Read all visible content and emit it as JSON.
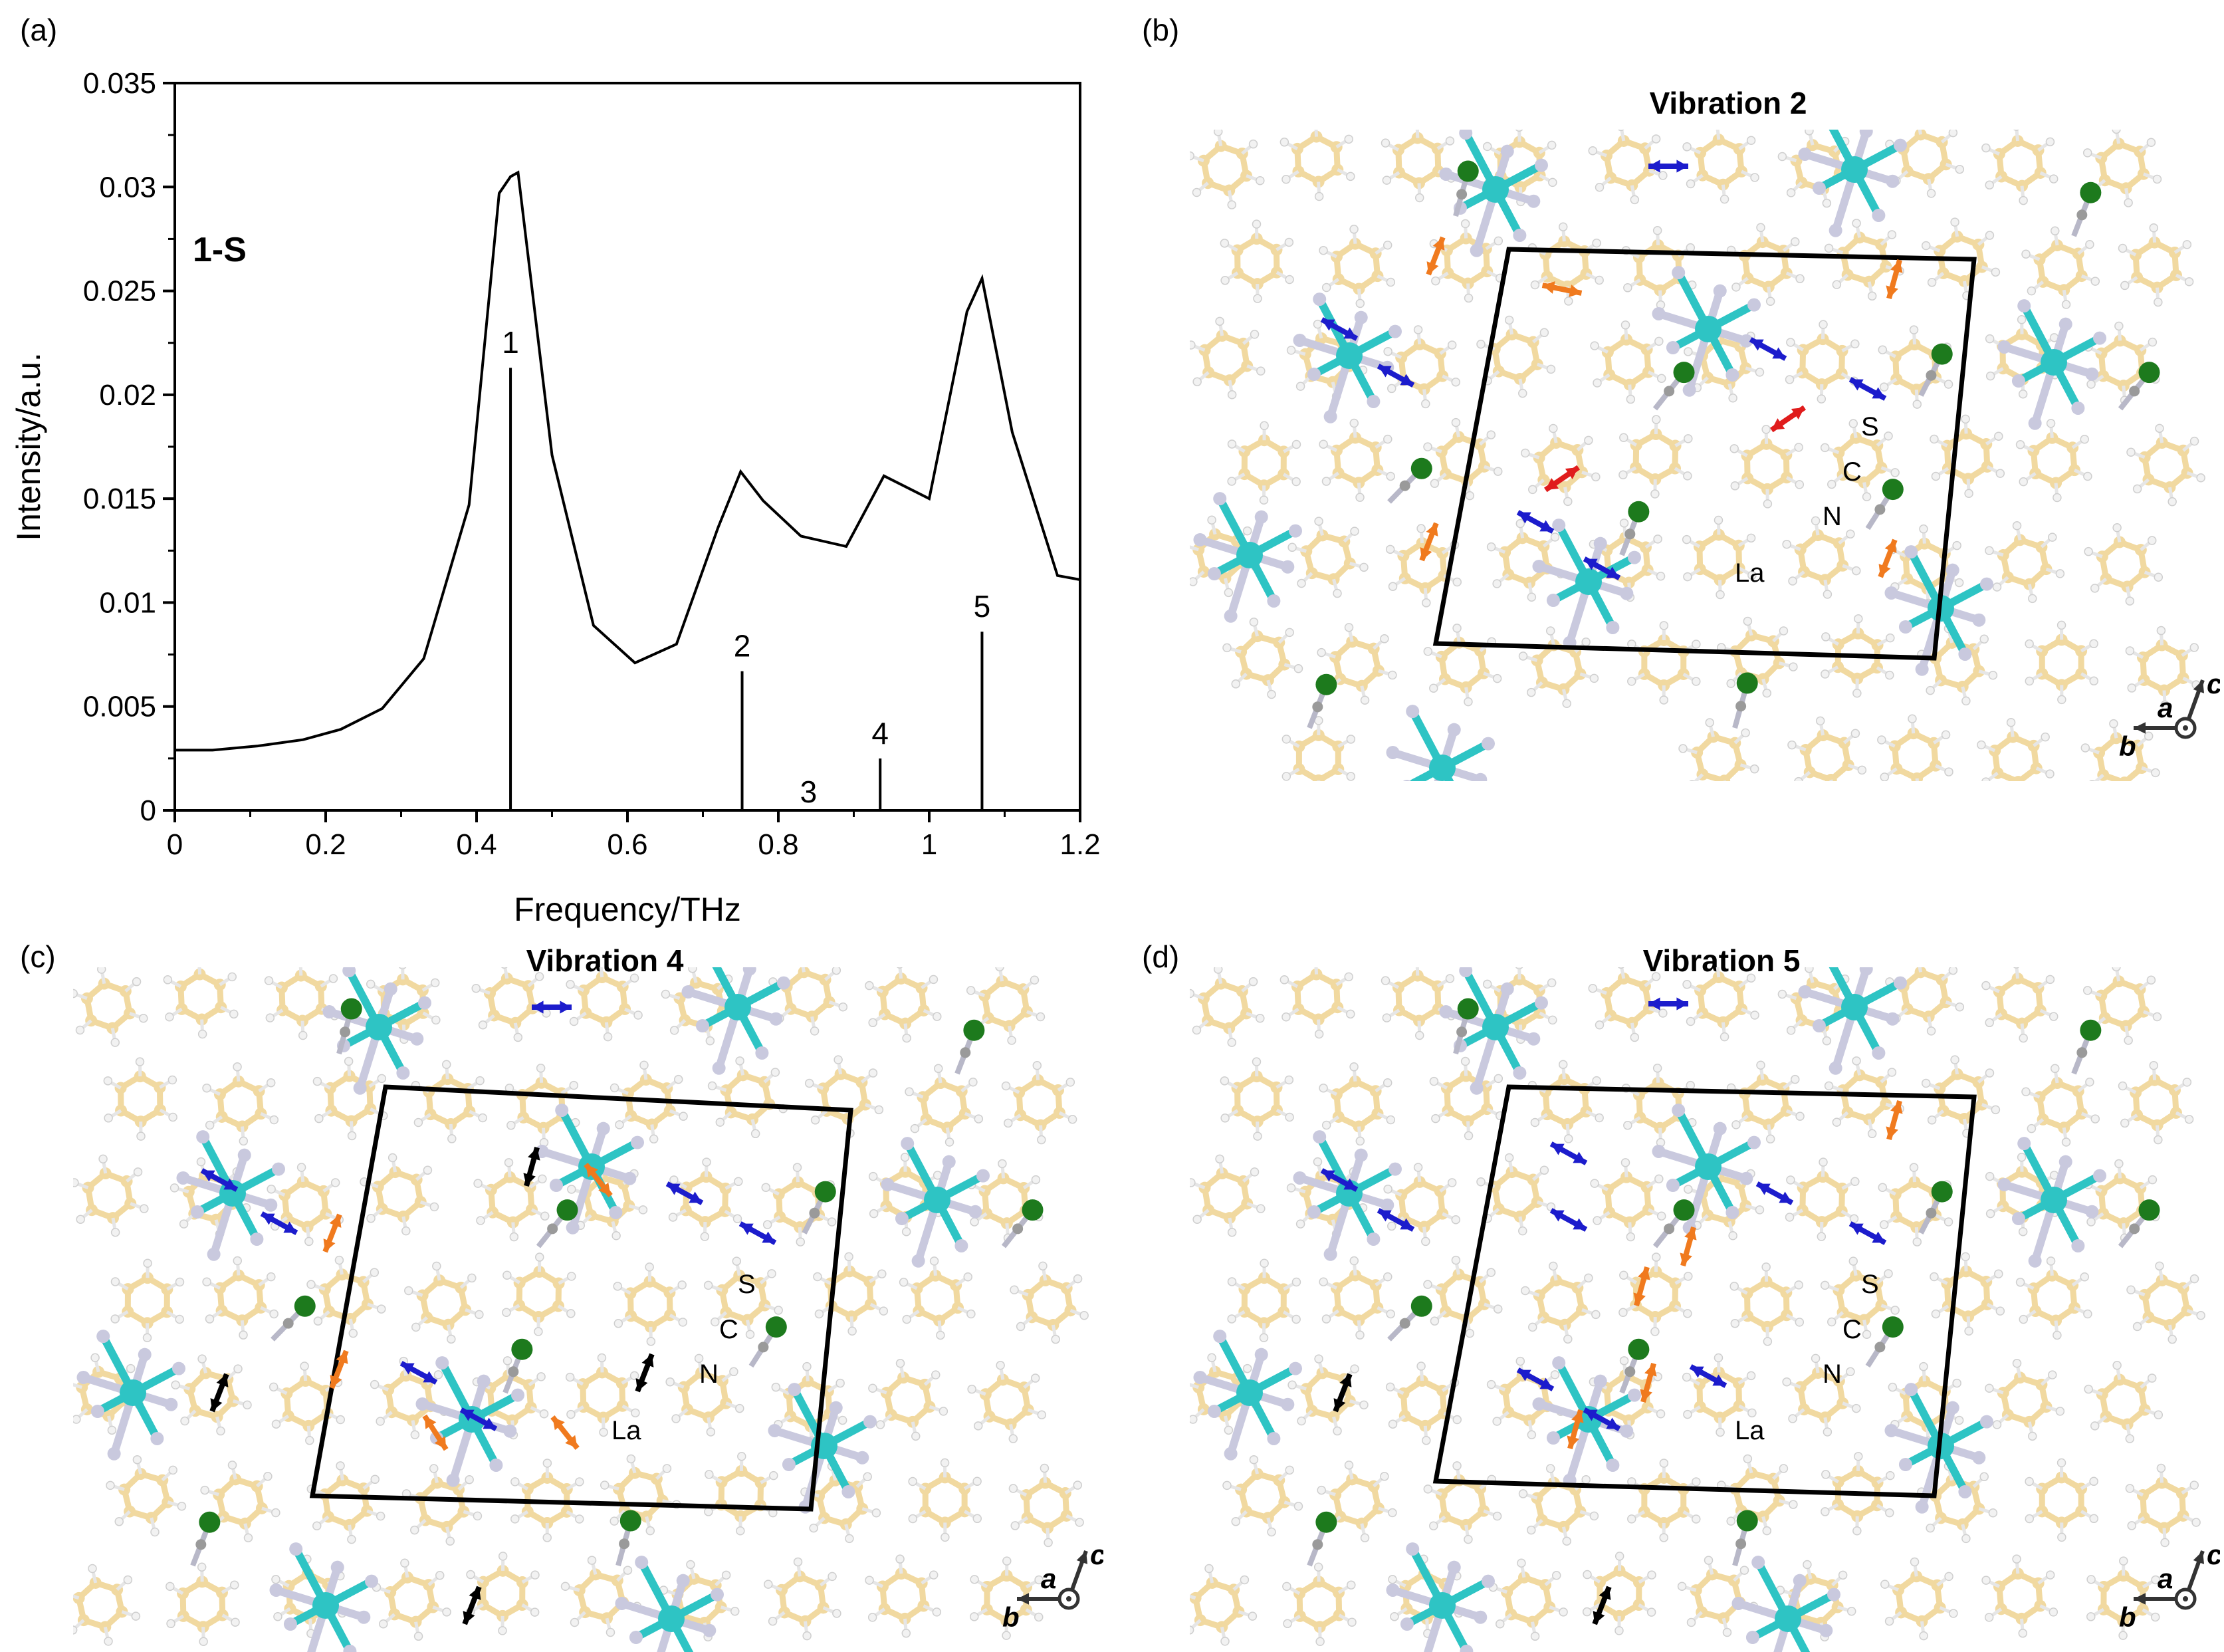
{
  "panels": {
    "a": "(a)",
    "b": "(b)",
    "c": "(c)",
    "d": "(d)"
  },
  "vibrations": {
    "b": "Vibration 2",
    "c": "Vibration 4",
    "d": "Vibration 5"
  },
  "atom_labels": {
    "S": "S",
    "C": "C",
    "N": "N",
    "La": "La"
  },
  "axis_labels": {
    "a": "a",
    "b": "b",
    "c": "c"
  },
  "colors": {
    "carbon": "#f1d9a0",
    "nitrogen": "#c9c9de",
    "lanthanum": "#2ec4c4",
    "sulfur": "#1d7a1d",
    "arrow_blue": "#1c1ccc",
    "arrow_orange": "#f07a1e",
    "arrow_red": "#e01c1c",
    "arrow_black": "#000000"
  },
  "chart_data": {
    "type": "line",
    "sample_label": "1-S",
    "xlabel": "Frequency/THz",
    "ylabel": "Intensity/a.u.",
    "xlim": [
      0,
      1.2
    ],
    "ylim": [
      0,
      0.035
    ],
    "xticks": [
      "0",
      "0.2",
      "0.4",
      "0.6",
      "0.8",
      "1",
      "1.2"
    ],
    "yticks": [
      "0",
      "0.005",
      "0.01",
      "0.015",
      "0.02",
      "0.025",
      "0.03",
      "0.035"
    ],
    "series": [
      {
        "x": [
          0,
          0.05,
          0.11,
          0.17,
          0.22,
          0.275,
          0.33,
          0.39,
          0.43,
          0.445,
          0.455,
          0.5,
          0.555,
          0.61,
          0.665,
          0.72,
          0.75,
          0.78,
          0.83,
          0.89,
          0.94,
          1.0,
          1.05,
          1.07,
          1.11,
          1.17,
          1.2
        ],
        "y": [
          0.0029,
          0.0029,
          0.0031,
          0.0034,
          0.0039,
          0.0049,
          0.0073,
          0.0147,
          0.0297,
          0.0305,
          0.0307,
          0.0171,
          0.0089,
          0.0071,
          0.008,
          0.0136,
          0.0163,
          0.0149,
          0.0132,
          0.0127,
          0.0161,
          0.015,
          0.024,
          0.0256,
          0.0182,
          0.0113,
          0.0111
        ]
      }
    ],
    "sticks": [
      {
        "label": "1",
        "x": 0.445,
        "y": 0.0213
      },
      {
        "label": "2",
        "x": 0.752,
        "y": 0.0067
      },
      {
        "label": "3",
        "x": 0.84,
        "y": 0.0
      },
      {
        "label": "4",
        "x": 0.935,
        "y": 0.0025
      },
      {
        "label": "5",
        "x": 1.07,
        "y": 0.0086
      }
    ]
  }
}
